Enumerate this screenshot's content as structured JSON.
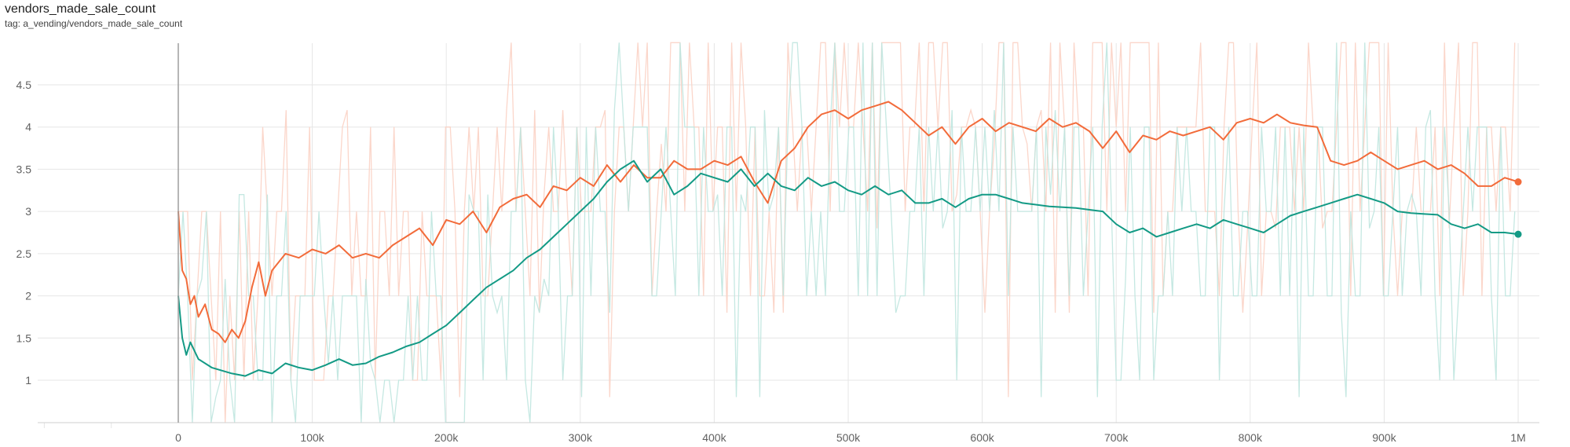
{
  "header": {
    "title": "vendors_made_sale_count",
    "tag": "tag: a_vending/vendors_made_sale_count"
  },
  "chart_data": {
    "type": "line",
    "title": "vendors_made_sale_count",
    "xlabel": "",
    "ylabel": "",
    "xlim": [
      -130000,
      1040000
    ],
    "ylim": [
      0.55,
      5.0
    ],
    "grid": true,
    "x_ticks": [
      0,
      100000,
      200000,
      300000,
      400000,
      500000,
      600000,
      700000,
      800000,
      900000,
      1000000
    ],
    "x_tick_labels": [
      "0",
      "100k",
      "200k",
      "300k",
      "400k",
      "500k",
      "600k",
      "700k",
      "800k",
      "900k",
      "1M"
    ],
    "y_ticks": [
      1,
      1.5,
      2,
      2.5,
      3,
      3.5,
      4,
      4.5
    ],
    "y_tick_labels": [
      "1",
      "1.5",
      "2",
      "2.5",
      "3",
      "3.5",
      "4",
      "4.5"
    ],
    "series": [
      {
        "color": "#f26b3a",
        "raw_color": "#fbd2c4",
        "smoothed": [
          [
            0,
            3.0
          ],
          [
            3000,
            2.3
          ],
          [
            6000,
            2.2
          ],
          [
            9000,
            1.9
          ],
          [
            12000,
            2.0
          ],
          [
            15000,
            1.75
          ],
          [
            20000,
            1.9
          ],
          [
            25000,
            1.6
          ],
          [
            30000,
            1.55
          ],
          [
            35000,
            1.45
          ],
          [
            40000,
            1.6
          ],
          [
            45000,
            1.5
          ],
          [
            50000,
            1.7
          ],
          [
            55000,
            2.1
          ],
          [
            60000,
            2.4
          ],
          [
            65000,
            2.0
          ],
          [
            70000,
            2.3
          ],
          [
            80000,
            2.5
          ],
          [
            90000,
            2.45
          ],
          [
            100000,
            2.55
          ],
          [
            110000,
            2.5
          ],
          [
            120000,
            2.6
          ],
          [
            130000,
            2.45
          ],
          [
            140000,
            2.5
          ],
          [
            150000,
            2.45
          ],
          [
            160000,
            2.6
          ],
          [
            170000,
            2.7
          ],
          [
            180000,
            2.8
          ],
          [
            190000,
            2.6
          ],
          [
            200000,
            2.9
          ],
          [
            210000,
            2.85
          ],
          [
            220000,
            3.0
          ],
          [
            230000,
            2.75
          ],
          [
            240000,
            3.05
          ],
          [
            250000,
            3.15
          ],
          [
            260000,
            3.2
          ],
          [
            270000,
            3.05
          ],
          [
            280000,
            3.3
          ],
          [
            290000,
            3.25
          ],
          [
            300000,
            3.4
          ],
          [
            310000,
            3.3
          ],
          [
            320000,
            3.55
          ],
          [
            330000,
            3.35
          ],
          [
            340000,
            3.55
          ],
          [
            350000,
            3.4
          ],
          [
            360000,
            3.4
          ],
          [
            370000,
            3.6
          ],
          [
            380000,
            3.5
          ],
          [
            390000,
            3.5
          ],
          [
            400000,
            3.6
          ],
          [
            410000,
            3.55
          ],
          [
            420000,
            3.65
          ],
          [
            430000,
            3.35
          ],
          [
            440000,
            3.1
          ],
          [
            450000,
            3.6
          ],
          [
            460000,
            3.75
          ],
          [
            470000,
            4.0
          ],
          [
            480000,
            4.15
          ],
          [
            490000,
            4.2
          ],
          [
            500000,
            4.1
          ],
          [
            510000,
            4.2
          ],
          [
            520000,
            4.25
          ],
          [
            530000,
            4.3
          ],
          [
            540000,
            4.2
          ],
          [
            550000,
            4.05
          ],
          [
            560000,
            3.9
          ],
          [
            570000,
            4.0
          ],
          [
            580000,
            3.8
          ],
          [
            590000,
            4.0
          ],
          [
            600000,
            4.1
          ],
          [
            610000,
            3.95
          ],
          [
            620000,
            4.05
          ],
          [
            630000,
            4.0
          ],
          [
            640000,
            3.95
          ],
          [
            650000,
            4.1
          ],
          [
            660000,
            4.0
          ],
          [
            670000,
            4.05
          ],
          [
            680000,
            3.95
          ],
          [
            690000,
            3.75
          ],
          [
            700000,
            3.95
          ],
          [
            710000,
            3.7
          ],
          [
            720000,
            3.9
          ],
          [
            730000,
            3.85
          ],
          [
            740000,
            3.95
          ],
          [
            750000,
            3.9
          ],
          [
            760000,
            3.95
          ],
          [
            770000,
            4.0
          ],
          [
            780000,
            3.85
          ],
          [
            790000,
            4.05
          ],
          [
            800000,
            4.1
          ],
          [
            810000,
            4.05
          ],
          [
            820000,
            4.15
          ],
          [
            830000,
            4.05
          ],
          [
            840000,
            4.02
          ],
          [
            850000,
            4.0
          ],
          [
            860000,
            3.6
          ],
          [
            870000,
            3.55
          ],
          [
            880000,
            3.6
          ],
          [
            890000,
            3.7
          ],
          [
            900000,
            3.6
          ],
          [
            910000,
            3.5
          ],
          [
            920000,
            3.55
          ],
          [
            930000,
            3.6
          ],
          [
            940000,
            3.5
          ],
          [
            950000,
            3.55
          ],
          [
            960000,
            3.45
          ],
          [
            970000,
            3.3
          ],
          [
            980000,
            3.3
          ],
          [
            990000,
            3.4
          ],
          [
            1000000,
            3.35
          ]
        ]
      },
      {
        "color": "#139a85",
        "raw_color": "#bfe6df",
        "smoothed": [
          [
            0,
            2.0
          ],
          [
            3000,
            1.5
          ],
          [
            6000,
            1.3
          ],
          [
            9000,
            1.45
          ],
          [
            15000,
            1.25
          ],
          [
            25000,
            1.15
          ],
          [
            40000,
            1.08
          ],
          [
            50000,
            1.05
          ],
          [
            60000,
            1.12
          ],
          [
            70000,
            1.08
          ],
          [
            80000,
            1.2
          ],
          [
            90000,
            1.15
          ],
          [
            100000,
            1.12
          ],
          [
            110000,
            1.18
          ],
          [
            120000,
            1.25
          ],
          [
            130000,
            1.18
          ],
          [
            140000,
            1.2
          ],
          [
            150000,
            1.28
          ],
          [
            160000,
            1.33
          ],
          [
            170000,
            1.4
          ],
          [
            180000,
            1.45
          ],
          [
            190000,
            1.55
          ],
          [
            200000,
            1.65
          ],
          [
            210000,
            1.8
          ],
          [
            220000,
            1.95
          ],
          [
            230000,
            2.1
          ],
          [
            240000,
            2.2
          ],
          [
            250000,
            2.3
          ],
          [
            260000,
            2.45
          ],
          [
            270000,
            2.55
          ],
          [
            280000,
            2.7
          ],
          [
            290000,
            2.85
          ],
          [
            300000,
            3.0
          ],
          [
            310000,
            3.15
          ],
          [
            320000,
            3.35
          ],
          [
            330000,
            3.5
          ],
          [
            340000,
            3.6
          ],
          [
            350000,
            3.35
          ],
          [
            360000,
            3.5
          ],
          [
            370000,
            3.2
          ],
          [
            380000,
            3.3
          ],
          [
            390000,
            3.45
          ],
          [
            400000,
            3.4
          ],
          [
            410000,
            3.35
          ],
          [
            420000,
            3.5
          ],
          [
            430000,
            3.3
          ],
          [
            440000,
            3.45
          ],
          [
            450000,
            3.3
          ],
          [
            460000,
            3.25
          ],
          [
            470000,
            3.4
          ],
          [
            480000,
            3.3
          ],
          [
            490000,
            3.35
          ],
          [
            500000,
            3.25
          ],
          [
            510000,
            3.2
          ],
          [
            520000,
            3.3
          ],
          [
            530000,
            3.2
          ],
          [
            540000,
            3.25
          ],
          [
            550000,
            3.1
          ],
          [
            560000,
            3.1
          ],
          [
            570000,
            3.15
          ],
          [
            580000,
            3.05
          ],
          [
            590000,
            3.15
          ],
          [
            600000,
            3.2
          ],
          [
            610000,
            3.2
          ],
          [
            620000,
            3.15
          ],
          [
            630000,
            3.1
          ],
          [
            640000,
            3.08
          ],
          [
            650000,
            3.06
          ],
          [
            660000,
            3.05
          ],
          [
            670000,
            3.04
          ],
          [
            680000,
            3.02
          ],
          [
            690000,
            3.0
          ],
          [
            700000,
            2.85
          ],
          [
            710000,
            2.75
          ],
          [
            720000,
            2.8
          ],
          [
            730000,
            2.7
          ],
          [
            740000,
            2.75
          ],
          [
            750000,
            2.8
          ],
          [
            760000,
            2.85
          ],
          [
            770000,
            2.8
          ],
          [
            780000,
            2.9
          ],
          [
            790000,
            2.85
          ],
          [
            800000,
            2.8
          ],
          [
            810000,
            2.75
          ],
          [
            820000,
            2.85
          ],
          [
            830000,
            2.95
          ],
          [
            840000,
            3.0
          ],
          [
            850000,
            3.05
          ],
          [
            860000,
            3.1
          ],
          [
            870000,
            3.15
          ],
          [
            880000,
            3.2
          ],
          [
            890000,
            3.15
          ],
          [
            900000,
            3.1
          ],
          [
            910000,
            3.0
          ],
          [
            920000,
            2.98
          ],
          [
            930000,
            2.97
          ],
          [
            940000,
            2.96
          ],
          [
            950000,
            2.85
          ],
          [
            960000,
            2.8
          ],
          [
            970000,
            2.85
          ],
          [
            980000,
            2.75
          ],
          [
            990000,
            2.75
          ],
          [
            1000000,
            2.73
          ]
        ]
      }
    ]
  }
}
